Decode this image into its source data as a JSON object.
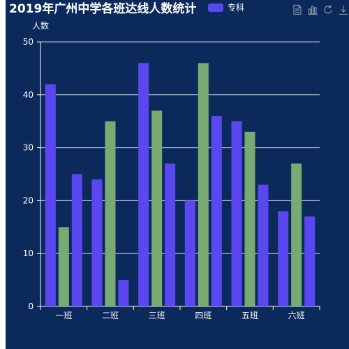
{
  "chart_data": {
    "type": "bar",
    "title": "2019年广州中学各班达线人数统计",
    "ylabel": "人数",
    "ylim": [
      0,
      50
    ],
    "yticks": [
      0,
      10,
      20,
      30,
      40,
      50
    ],
    "categories": [
      "一班",
      "二班",
      "三班",
      "四班",
      "五班",
      "六班"
    ],
    "series": [
      {
        "name": "专科",
        "color": "#5b47f0",
        "values": [
          42,
          24,
          46,
          20,
          35,
          18
        ]
      },
      {
        "name": "",
        "color": "#7aaa74",
        "values": [
          15,
          35,
          37,
          46,
          33,
          27
        ]
      },
      {
        "name": "",
        "color": "#5b47f0",
        "values": [
          25,
          5,
          27,
          36,
          23,
          17
        ]
      }
    ],
    "legend": [
      {
        "label": "专科",
        "color": "#5b47f0"
      }
    ],
    "grid": true,
    "legend_position": "top"
  },
  "toolbox": {
    "icons": [
      "data-view-icon",
      "bar-chart-icon",
      "refresh-icon",
      "download-icon"
    ],
    "color": "#8a94a6"
  }
}
